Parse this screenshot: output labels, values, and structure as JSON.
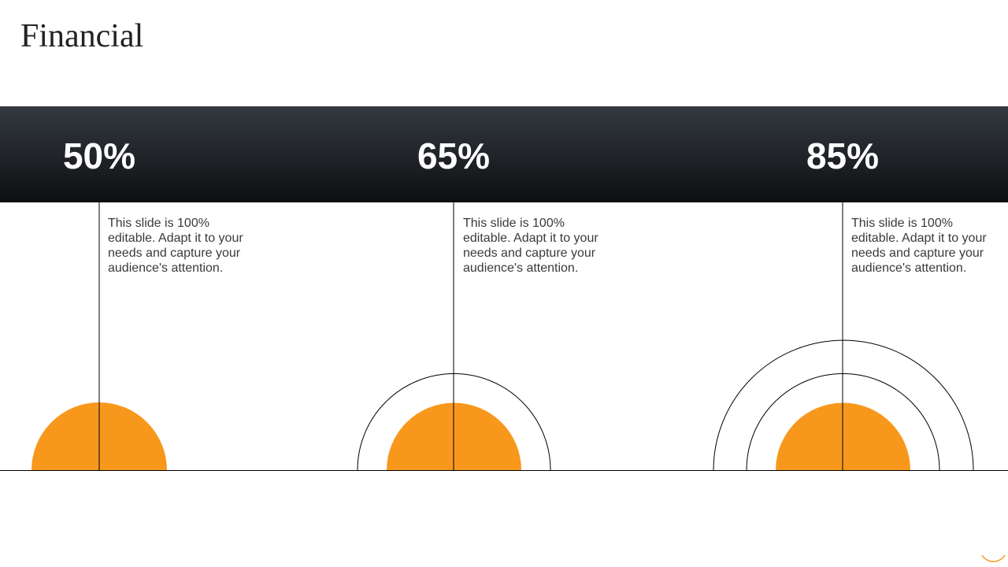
{
  "title": "Financial",
  "colors": {
    "accent": "#F7981D",
    "band": "#1f2227",
    "line": "#000000"
  },
  "stats": [
    {
      "value": "50%",
      "description": "This slide is 100% editable. Adapt it to your needs and capture your audience's attention.",
      "rings": 0
    },
    {
      "value": "65%",
      "description": "This slide is 100% editable. Adapt it to your needs and capture your audience's attention.",
      "rings": 1
    },
    {
      "value": "85%",
      "description": "This slide is 100% editable. Adapt it to your needs and capture your audience's attention.",
      "rings": 2
    }
  ]
}
